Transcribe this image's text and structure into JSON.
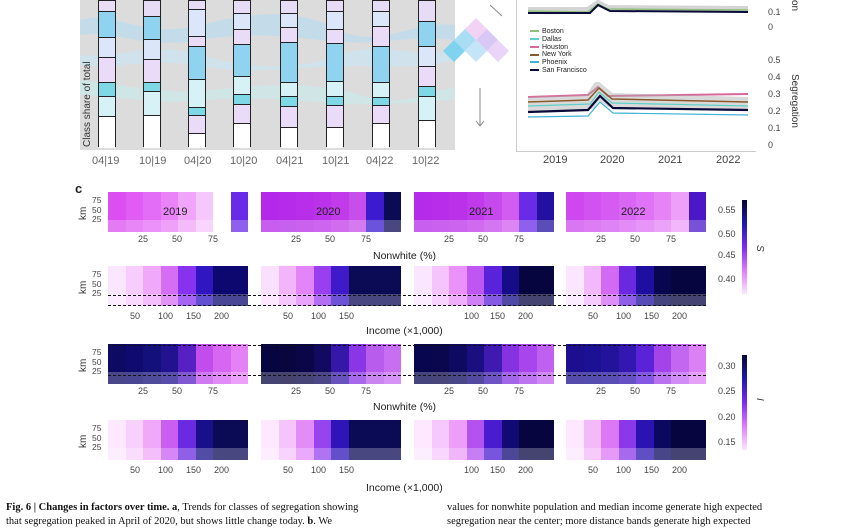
{
  "panel_a": {
    "y_label": "Class share of total",
    "x_ticks": [
      "04|19",
      "10|19",
      "04|20",
      "10|20",
      "04|21",
      "10|21",
      "04|22",
      "10|22"
    ]
  },
  "panel_b": {
    "legend": [
      {
        "name": "Boston",
        "color": "#8fbf7a"
      },
      {
        "name": "Dallas",
        "color": "#5fd0c8"
      },
      {
        "name": "Houston",
        "color": "#d9689a"
      },
      {
        "name": "New York",
        "color": "#8a5a2a"
      },
      {
        "name": "Phoenix",
        "color": "#3fb3d6"
      },
      {
        "name": "San Francisco",
        "color": "#0a0a3a"
      }
    ],
    "top_y_ticks": [
      "0.1",
      "0"
    ],
    "top_y_label_fragment": "on",
    "bottom_y_ticks": [
      "0.5",
      "0.4",
      "0.3",
      "0.2",
      "0.1",
      "0"
    ],
    "bottom_y_label": "Segregation",
    "x_ticks": [
      "2019",
      "2020",
      "2021",
      "2022"
    ]
  },
  "panel_c": {
    "label": "c",
    "km_label": "km",
    "km_ticks": [
      "75",
      "50",
      "25"
    ],
    "years": [
      "2019",
      "2020",
      "2021",
      "2022"
    ],
    "nonwhite_ticks": [
      "25",
      "50",
      "75"
    ],
    "nonwhite_label": "Nonwhite (%)",
    "income_label": "Income (×1,000)",
    "income_ticks_a": [
      "50",
      "100",
      "150",
      "200"
    ],
    "income_ticks_b": [
      "50",
      "100",
      "150"
    ],
    "income_ticks_c": [
      "100",
      "150",
      "200"
    ],
    "income_ticks_d": [
      "50",
      "100",
      "150",
      "200"
    ],
    "s_legend": {
      "symbol": "S",
      "ticks": [
        "0.55",
        "0.50",
        "0.45",
        "0.40"
      ]
    },
    "i_legend": {
      "symbol": "I",
      "ticks": [
        "0.30",
        "0.25",
        "0.20",
        "0.15"
      ]
    }
  },
  "caption": {
    "left_bold": "Fig. 6 | Changes in factors over time. a",
    "left_text": ", Trends for classes of segregation showing",
    "left_line2": "that segregation peaked in April of 2020, but shows little change today.",
    "left_line2_bold": "b",
    "left_line2_end": ". We",
    "right_line1": "values for nonwhite population and median income generate high expected",
    "right_line2": "segregation near the center; more distance bands generate high expected"
  }
}
